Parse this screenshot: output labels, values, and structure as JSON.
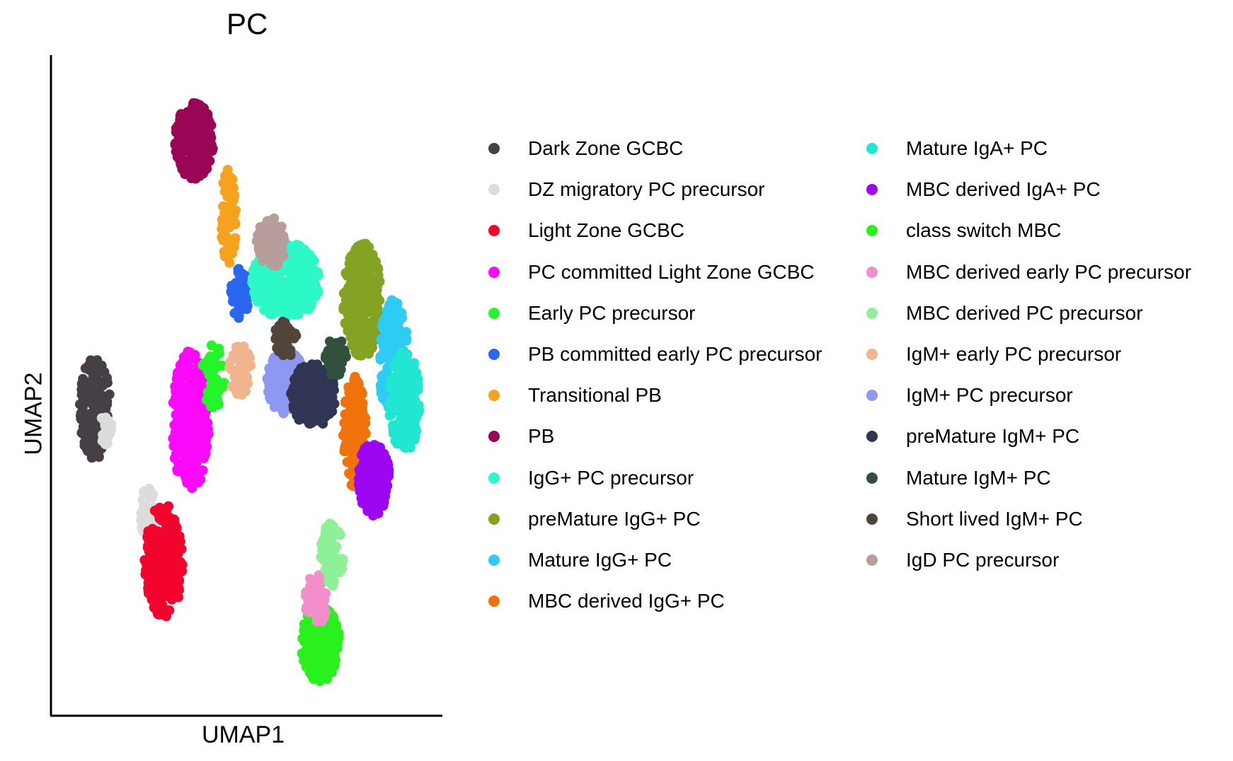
{
  "chart_data": {
    "type": "scatter",
    "title": "PC",
    "xlabel": "UMAP1",
    "ylabel": "UMAP2",
    "xlim": [
      0,
      100
    ],
    "ylim": [
      0,
      100
    ],
    "grid": false,
    "legend_position": "right",
    "series": [
      {
        "name": "Dark Zone GCBC",
        "color": "#463F45"
      },
      {
        "name": "DZ migratory PC precursor",
        "color": "#DCDCDC"
      },
      {
        "name": "Light Zone GCBC",
        "color": "#F2052D"
      },
      {
        "name": "PC committed Light Zone GCBC",
        "color": "#FB0AFA"
      },
      {
        "name": "Early PC precursor",
        "color": "#24F52A"
      },
      {
        "name": "PB committed early PC precursor",
        "color": "#2A66F0"
      },
      {
        "name": "Transitional PB",
        "color": "#F6A21E"
      },
      {
        "name": "PB",
        "color": "#9A0656"
      },
      {
        "name": "IgG+ PC precursor",
        "color": "#2CF9C7"
      },
      {
        "name": "preMature IgG+ PC",
        "color": "#84A322"
      },
      {
        "name": "Mature IgG+ PC",
        "color": "#2DCCF5"
      },
      {
        "name": "MBC derived IgG+ PC",
        "color": "#F0720B"
      },
      {
        "name": "Mature IgA+ PC",
        "color": "#21E6D2"
      },
      {
        "name": "MBC derived IgA+ PC",
        "color": "#9D06F2"
      },
      {
        "name": "class switch MBC",
        "color": "#2AF01E"
      },
      {
        "name": "MBC derived early PC precursor",
        "color": "#F28FCB"
      },
      {
        "name": "MBC derived PC precursor",
        "color": "#8EF097"
      },
      {
        "name": "IgM+ early PC precursor",
        "color": "#F0B58E"
      },
      {
        "name": "IgM+ PC precursor",
        "color": "#8C98F2"
      },
      {
        "name": "preMature IgM+ PC",
        "color": "#2F3552"
      },
      {
        "name": "Mature IgM+ PC",
        "color": "#32503E"
      },
      {
        "name": "Short lived IgM+ PC",
        "color": "#51443A"
      },
      {
        "name": "IgD PC precursor",
        "color": "#B89E9A"
      }
    ],
    "clusters": [
      {
        "series": 0,
        "cx": 10,
        "cy": 47,
        "rx": 4,
        "ry": 8,
        "n": 160
      },
      {
        "series": 1,
        "cx": 13,
        "cy": 44,
        "rx": 1.5,
        "ry": 3,
        "n": 25
      },
      {
        "series": 1,
        "cx": 24,
        "cy": 30,
        "rx": 2,
        "ry": 5,
        "n": 40
      },
      {
        "series": 2,
        "cx": 28,
        "cy": 23,
        "rx": 5,
        "ry": 9,
        "n": 260
      },
      {
        "series": 3,
        "cx": 35,
        "cy": 45,
        "rx": 5,
        "ry": 11,
        "n": 300
      },
      {
        "series": 4,
        "cx": 41,
        "cy": 52,
        "rx": 3,
        "ry": 5,
        "n": 40
      },
      {
        "series": 5,
        "cx": 48,
        "cy": 65,
        "rx": 2.5,
        "ry": 4,
        "n": 60
      },
      {
        "series": 6,
        "cx": 45,
        "cy": 77,
        "rx": 2,
        "ry": 8,
        "n": 70
      },
      {
        "series": 7,
        "cx": 36,
        "cy": 89,
        "rx": 5,
        "ry": 6,
        "n": 250
      },
      {
        "series": 8,
        "cx": 60,
        "cy": 67,
        "rx": 9,
        "ry": 6,
        "n": 380
      },
      {
        "series": 9,
        "cx": 80,
        "cy": 64,
        "rx": 5,
        "ry": 9,
        "n": 280
      },
      {
        "series": 10,
        "cx": 88,
        "cy": 55,
        "rx": 4,
        "ry": 9,
        "n": 200
      },
      {
        "series": 11,
        "cx": 78,
        "cy": 43,
        "rx": 3,
        "ry": 9,
        "n": 150
      },
      {
        "series": 12,
        "cx": 91,
        "cy": 48,
        "rx": 4,
        "ry": 8,
        "n": 200
      },
      {
        "series": 13,
        "cx": 83,
        "cy": 36,
        "rx": 4,
        "ry": 6,
        "n": 180
      },
      {
        "series": 14,
        "cx": 69,
        "cy": 10,
        "rx": 5,
        "ry": 6,
        "n": 200
      },
      {
        "series": 15,
        "cx": 68,
        "cy": 17,
        "rx": 3,
        "ry": 4,
        "n": 70
      },
      {
        "series": 16,
        "cx": 72,
        "cy": 24,
        "rx": 3,
        "ry": 5,
        "n": 80
      },
      {
        "series": 17,
        "cx": 48,
        "cy": 53,
        "rx": 3,
        "ry": 4,
        "n": 60
      },
      {
        "series": 18,
        "cx": 60,
        "cy": 51,
        "rx": 5,
        "ry": 5,
        "n": 150
      },
      {
        "series": 19,
        "cx": 67,
        "cy": 49,
        "rx": 6,
        "ry": 5,
        "n": 200
      },
      {
        "series": 20,
        "cx": 73,
        "cy": 55,
        "rx": 3,
        "ry": 3,
        "n": 40
      },
      {
        "series": 21,
        "cx": 60,
        "cy": 58,
        "rx": 3,
        "ry": 3,
        "n": 40
      },
      {
        "series": 22,
        "cx": 56,
        "cy": 73,
        "rx": 4,
        "ry": 4,
        "n": 90
      }
    ]
  }
}
